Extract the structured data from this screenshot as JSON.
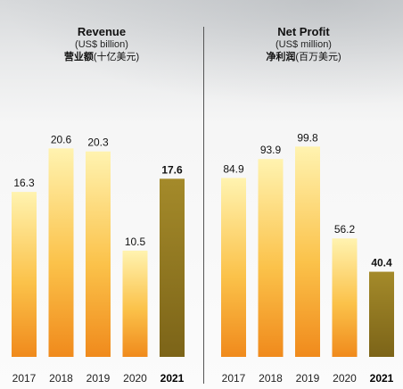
{
  "chart_data": [
    {
      "type": "bar",
      "title": "Revenue",
      "unit": "(US$ billion)",
      "title_cn": "营业额",
      "unit_cn": "(十亿美元)",
      "categories": [
        "2017",
        "2018",
        "2019",
        "2020",
        "2021"
      ],
      "values": [
        16.3,
        20.6,
        20.3,
        10.5,
        17.6
      ],
      "value_labels": [
        "16.3",
        "20.6",
        "20.3",
        "10.5",
        "17.6"
      ],
      "highlight": "2021",
      "ylim": [
        0,
        25.3
      ],
      "grid": false
    },
    {
      "type": "bar",
      "title": "Net Profit",
      "unit": "(US$ million)",
      "title_cn": "净利润",
      "unit_cn": "(百万美元)",
      "categories": [
        "2017",
        "2018",
        "2019",
        "2020",
        "2021"
      ],
      "values": [
        84.9,
        93.9,
        99.8,
        56.2,
        40.4
      ],
      "value_labels": [
        "84.9",
        "93.9",
        "99.8",
        "56.2",
        "40.4"
      ],
      "highlight": "2021",
      "ylim": [
        0,
        121.5
      ],
      "grid": false
    }
  ],
  "colors": {
    "bar_top": "#fff3b0",
    "bar_mid": "#fbc24a",
    "bar_bottom": "#f08a1c",
    "highlight_top": "#a48a2a",
    "highlight_bottom": "#7c6418"
  }
}
